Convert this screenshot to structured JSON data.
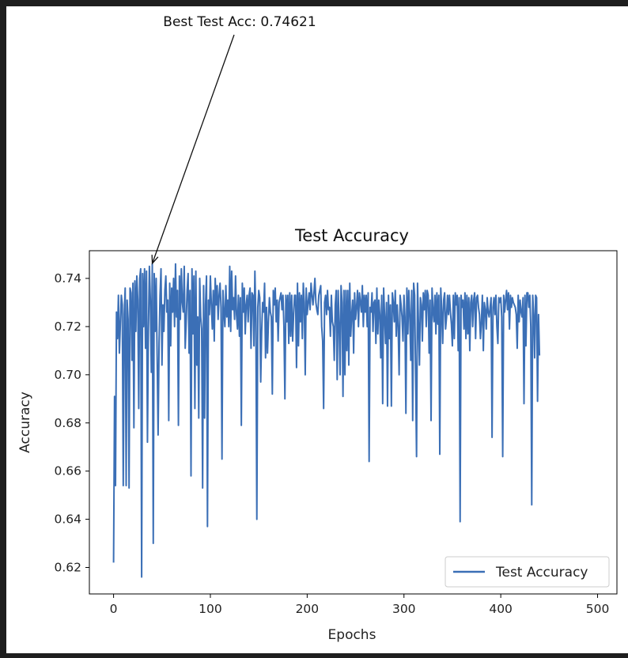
{
  "chart_data": {
    "type": "line",
    "title": "Test Accuracy",
    "xlabel": "Epochs",
    "ylabel": "Accuracy",
    "xlim": [
      -25,
      520
    ],
    "ylim": [
      0.609,
      0.7515
    ],
    "xticks": [
      0,
      100,
      200,
      300,
      400,
      500
    ],
    "yticks": [
      0.62,
      0.64,
      0.66,
      0.68,
      0.7,
      0.72,
      0.74
    ],
    "xtick_labels": [
      "0",
      "100",
      "200",
      "300",
      "400",
      "500"
    ],
    "ytick_labels": [
      "0.62",
      "0.64",
      "0.66",
      "0.68",
      "0.70",
      "0.72",
      "0.74"
    ],
    "grid": false,
    "legend_position": "lower-right",
    "series": [
      {
        "name": "Test Accuracy",
        "color": "#3b6fb6",
        "x_start": 0,
        "x_step": 1,
        "y": [
          0.622,
          0.691,
          0.654,
          0.726,
          0.715,
          0.733,
          0.709,
          0.721,
          0.733,
          0.729,
          0.654,
          0.725,
          0.736,
          0.654,
          0.731,
          0.723,
          0.653,
          0.736,
          0.734,
          0.706,
          0.738,
          0.678,
          0.739,
          0.718,
          0.741,
          0.731,
          0.686,
          0.74,
          0.744,
          0.616,
          0.742,
          0.72,
          0.744,
          0.711,
          0.743,
          0.672,
          0.719,
          0.745,
          0.731,
          0.701,
          0.746,
          0.63,
          0.742,
          0.718,
          0.74,
          0.708,
          0.675,
          0.713,
          0.733,
          0.744,
          0.704,
          0.729,
          0.718,
          0.735,
          0.741,
          0.726,
          0.731,
          0.681,
          0.738,
          0.712,
          0.736,
          0.726,
          0.74,
          0.72,
          0.746,
          0.724,
          0.735,
          0.679,
          0.741,
          0.723,
          0.744,
          0.73,
          0.726,
          0.745,
          0.711,
          0.722,
          0.735,
          0.742,
          0.709,
          0.735,
          0.658,
          0.744,
          0.717,
          0.741,
          0.686,
          0.743,
          0.704,
          0.724,
          0.682,
          0.74,
          0.724,
          0.719,
          0.653,
          0.737,
          0.682,
          0.729,
          0.741,
          0.637,
          0.731,
          0.725,
          0.741,
          0.729,
          0.719,
          0.735,
          0.714,
          0.74,
          0.729,
          0.737,
          0.723,
          0.733,
          0.738,
          0.728,
          0.665,
          0.735,
          0.726,
          0.72,
          0.737,
          0.724,
          0.731,
          0.72,
          0.745,
          0.718,
          0.743,
          0.727,
          0.732,
          0.723,
          0.741,
          0.725,
          0.719,
          0.733,
          0.716,
          0.732,
          0.679,
          0.738,
          0.726,
          0.736,
          0.717,
          0.729,
          0.733,
          0.722,
          0.733,
          0.736,
          0.711,
          0.734,
          0.733,
          0.712,
          0.743,
          0.723,
          0.64,
          0.728,
          0.735,
          0.732,
          0.697,
          0.718,
          0.73,
          0.726,
          0.738,
          0.707,
          0.728,
          0.709,
          0.722,
          0.732,
          0.726,
          0.724,
          0.692,
          0.735,
          0.729,
          0.736,
          0.722,
          0.731,
          0.714,
          0.73,
          0.732,
          0.734,
          0.727,
          0.733,
          0.72,
          0.69,
          0.733,
          0.722,
          0.733,
          0.713,
          0.734,
          0.716,
          0.733,
          0.714,
          0.725,
          0.733,
          0.733,
          0.703,
          0.738,
          0.712,
          0.734,
          0.722,
          0.733,
          0.715,
          0.738,
          0.73,
          0.7,
          0.736,
          0.725,
          0.73,
          0.734,
          0.727,
          0.738,
          0.733,
          0.729,
          0.734,
          0.74,
          0.73,
          0.727,
          0.725,
          0.733,
          0.735,
          0.737,
          0.72,
          0.714,
          0.686,
          0.73,
          0.733,
          0.725,
          0.735,
          0.727,
          0.728,
          0.716,
          0.733,
          0.722,
          0.72,
          0.706,
          0.729,
          0.735,
          0.698,
          0.735,
          0.721,
          0.7,
          0.737,
          0.73,
          0.691,
          0.735,
          0.7,
          0.735,
          0.71,
          0.735,
          0.704,
          0.738,
          0.716,
          0.725,
          0.731,
          0.709,
          0.734,
          0.723,
          0.728,
          0.735,
          0.72,
          0.734,
          0.73,
          0.726,
          0.737,
          0.72,
          0.733,
          0.726,
          0.733,
          0.72,
          0.734,
          0.664,
          0.728,
          0.726,
          0.734,
          0.718,
          0.73,
          0.731,
          0.713,
          0.736,
          0.717,
          0.731,
          0.725,
          0.707,
          0.733,
          0.688,
          0.736,
          0.724,
          0.713,
          0.73,
          0.687,
          0.733,
          0.715,
          0.729,
          0.687,
          0.734,
          0.73,
          0.722,
          0.735,
          0.716,
          0.729,
          0.72,
          0.7,
          0.733,
          0.729,
          0.724,
          0.714,
          0.733,
          0.724,
          0.684,
          0.736,
          0.717,
          0.735,
          0.725,
          0.706,
          0.735,
          0.681,
          0.738,
          0.733,
          0.7,
          0.666,
          0.738,
          0.721,
          0.704,
          0.732,
          0.729,
          0.714,
          0.734,
          0.727,
          0.735,
          0.72,
          0.735,
          0.733,
          0.709,
          0.731,
          0.681,
          0.736,
          0.727,
          0.722,
          0.733,
          0.717,
          0.734,
          0.721,
          0.733,
          0.667,
          0.736,
          0.727,
          0.713,
          0.731,
          0.734,
          0.719,
          0.724,
          0.733,
          0.725,
          0.733,
          0.726,
          0.721,
          0.712,
          0.733,
          0.715,
          0.734,
          0.729,
          0.733,
          0.71,
          0.732,
          0.639,
          0.733,
          0.728,
          0.731,
          0.719,
          0.734,
          0.715,
          0.733,
          0.717,
          0.732,
          0.71,
          0.73,
          0.733,
          0.72,
          0.731,
          0.734,
          0.715,
          0.732,
          0.733,
          0.728,
          0.725,
          0.715,
          0.722,
          0.733,
          0.71,
          0.73,
          0.727,
          0.719,
          0.732,
          0.726,
          0.724,
          0.728,
          0.732,
          0.674,
          0.728,
          0.732,
          0.725,
          0.733,
          0.72,
          0.713,
          0.732,
          0.73,
          0.732,
          0.724,
          0.666,
          0.733,
          0.726,
          0.731,
          0.735,
          0.727,
          0.734,
          0.719,
          0.733,
          0.728,
          0.732,
          0.73,
          0.729,
          0.728,
          0.725,
          0.711,
          0.733,
          0.722,
          0.731,
          0.726,
          0.724,
          0.732,
          0.688,
          0.733,
          0.712,
          0.734,
          0.734,
          0.728,
          0.733,
          0.72,
          0.646,
          0.733,
          0.725,
          0.707,
          0.733,
          0.732,
          0.689,
          0.725,
          0.708
        ]
      }
    ],
    "legend": [
      {
        "label": "Test Accuracy",
        "color": "#3b6fb6"
      }
    ],
    "annotations": [
      {
        "text": "Best Test Acc: 0.74621",
        "target_x": 40,
        "target_y": 0.74621
      }
    ]
  }
}
